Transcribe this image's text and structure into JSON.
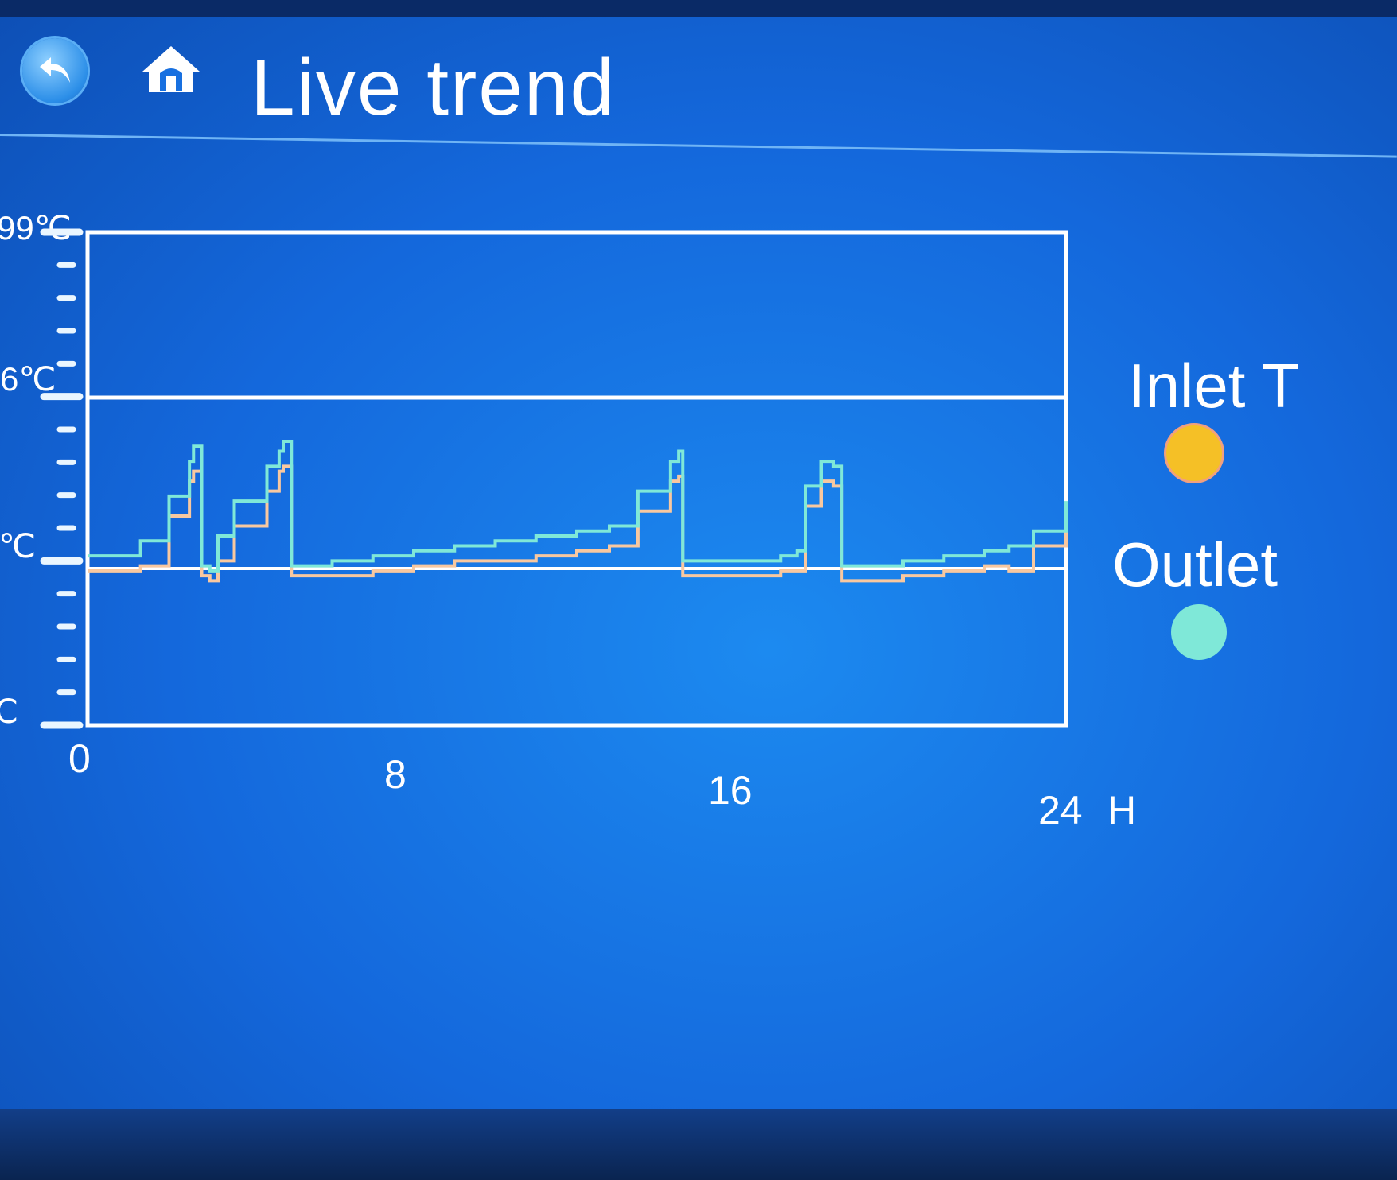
{
  "header": {
    "title": "Live trend",
    "back_icon": "back-arrow-icon",
    "home_icon": "home-icon"
  },
  "colors": {
    "background": "#1870e0",
    "inlet": "#f5c026",
    "outlet": "#7fe8d8",
    "grid": "#ffffff"
  },
  "chart_data": {
    "type": "line",
    "xlabel": "H",
    "x_ticks": [
      "0",
      "8",
      "16",
      "24"
    ],
    "y_tick_labels": [
      "99℃",
      "6℃",
      "℃",
      "℃"
    ],
    "xlim": [
      0,
      24
    ],
    "ylim": [
      0,
      99
    ],
    "grid": "horizontal lines at upper and middle levels",
    "legend_placement": "right",
    "series": [
      {
        "name": "Inlet T",
        "color": "#f5c026",
        "x": [
          0,
          1.2,
          1.3,
          2.0,
          2.5,
          2.6,
          2.8,
          3.0,
          3.2,
          3.6,
          4.4,
          4.7,
          4.8,
          5.0,
          6,
          7,
          8,
          9,
          10,
          11,
          12,
          12.8,
          13.5,
          14.3,
          14.5,
          14.6,
          15,
          16,
          17,
          17.4,
          17.6,
          18,
          18.3,
          18.5,
          19,
          20,
          21,
          22,
          22.6,
          23.2,
          24
        ],
        "y": [
          31,
          31,
          32,
          42,
          49,
          51,
          30,
          29,
          33,
          40,
          47,
          51,
          52,
          30,
          30,
          31,
          32,
          33,
          33,
          34,
          35,
          36,
          43,
          49,
          50,
          30,
          30,
          30,
          31,
          31,
          44,
          49,
          48,
          29,
          29,
          30,
          31,
          32,
          31,
          36,
          42
        ]
      },
      {
        "name": "Outlet",
        "color": "#7fe8d8",
        "x": [
          0,
          1.2,
          1.3,
          2.0,
          2.5,
          2.6,
          2.8,
          3.0,
          3.2,
          3.6,
          4.4,
          4.7,
          4.8,
          5.0,
          6,
          7,
          8,
          9,
          10,
          11,
          12,
          12.8,
          13.5,
          14.3,
          14.5,
          14.6,
          15,
          16,
          17,
          17.4,
          17.6,
          18,
          18.3,
          18.5,
          19,
          20,
          21,
          22,
          22.6,
          23.2,
          24
        ],
        "y": [
          34,
          34,
          37,
          46,
          53,
          56,
          32,
          31,
          38,
          45,
          52,
          55,
          57,
          32,
          33,
          34,
          35,
          36,
          37,
          38,
          39,
          40,
          47,
          53,
          55,
          33,
          33,
          33,
          34,
          35,
          48,
          53,
          52,
          32,
          32,
          33,
          34,
          35,
          36,
          39,
          45
        ]
      }
    ]
  }
}
